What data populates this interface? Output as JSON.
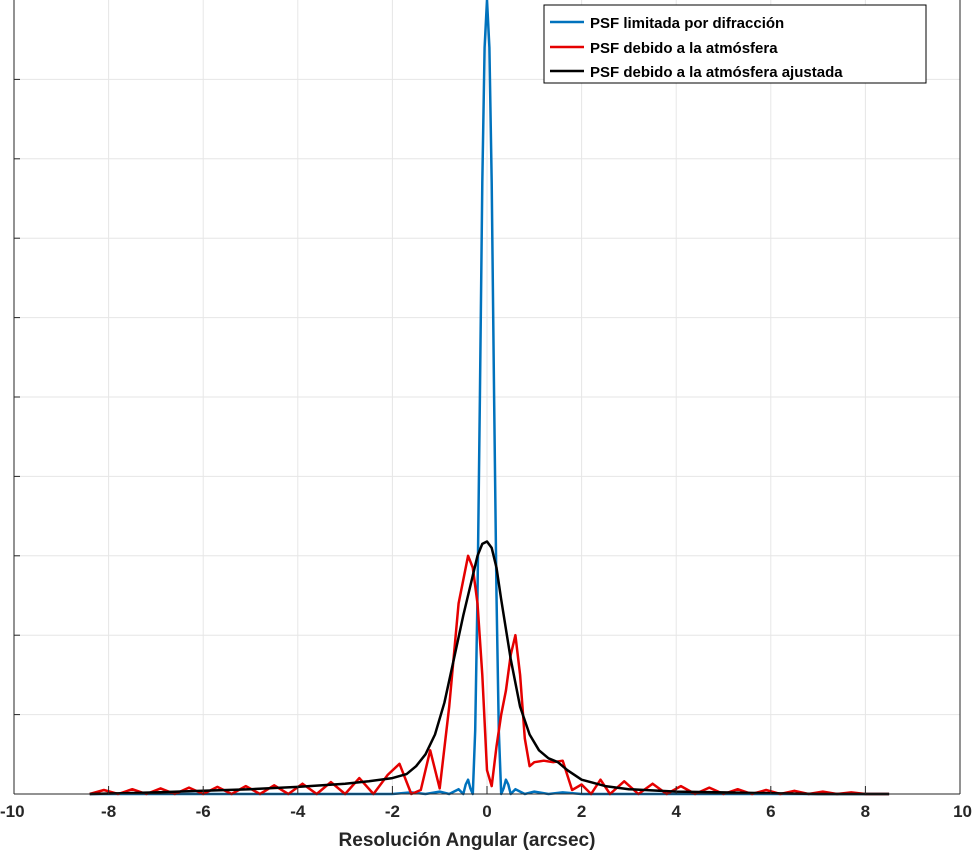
{
  "chart_data": {
    "type": "line",
    "title": "",
    "xlabel": "Resolución Angular (arcsec)",
    "ylabel": "",
    "xlim": [
      -10,
      10
    ],
    "ylim": [
      0,
      1
    ],
    "xticks": [
      -10,
      -8,
      -6,
      -4,
      -2,
      0,
      2,
      4,
      6,
      8,
      10
    ],
    "xtick_labels": [
      "-10",
      "-8",
      "-6",
      "-4",
      "-2",
      "0",
      "2",
      "4",
      "6",
      "8",
      "10"
    ],
    "y_gridlines": [
      0.1,
      0.2,
      0.3,
      0.4,
      0.5,
      0.6,
      0.7,
      0.8,
      0.9
    ],
    "grid": true,
    "legend_position": "top-right",
    "series": [
      {
        "name": "PSF limitada por difracción",
        "color": "#0072BD",
        "x": [
          -8.4,
          -2.0,
          -1.6,
          -1.3,
          -1.0,
          -0.8,
          -0.6,
          -0.5,
          -0.45,
          -0.4,
          -0.35,
          -0.3,
          -0.25,
          -0.2,
          -0.15,
          -0.1,
          -0.05,
          0.0,
          0.05,
          0.1,
          0.15,
          0.2,
          0.25,
          0.3,
          0.35,
          0.4,
          0.45,
          0.5,
          0.6,
          0.8,
          1.0,
          1.3,
          1.6,
          2.0,
          8.5
        ],
        "y": [
          0.0,
          0.0,
          0.002,
          0.0,
          0.003,
          0.0,
          0.006,
          0.0,
          0.012,
          0.018,
          0.007,
          0.0,
          0.08,
          0.25,
          0.5,
          0.77,
          0.94,
          1.0,
          0.94,
          0.77,
          0.5,
          0.25,
          0.08,
          0.0,
          0.007,
          0.018,
          0.012,
          0.0,
          0.006,
          0.0,
          0.003,
          0.0,
          0.002,
          0.0,
          0.0
        ]
      },
      {
        "name": "PSF debido a la atmósfera",
        "color": "#E50000",
        "x": [
          -8.4,
          -8.1,
          -7.8,
          -7.5,
          -7.2,
          -6.9,
          -6.6,
          -6.3,
          -6.0,
          -5.7,
          -5.4,
          -5.1,
          -4.8,
          -4.5,
          -4.2,
          -3.9,
          -3.6,
          -3.3,
          -3.0,
          -2.7,
          -2.4,
          -2.1,
          -1.85,
          -1.6,
          -1.4,
          -1.2,
          -1.0,
          -0.8,
          -0.6,
          -0.4,
          -0.3,
          -0.2,
          -0.1,
          0.0,
          0.1,
          0.2,
          0.3,
          0.4,
          0.5,
          0.6,
          0.7,
          0.8,
          0.9,
          1.0,
          1.2,
          1.4,
          1.6,
          1.8,
          2.0,
          2.2,
          2.4,
          2.6,
          2.9,
          3.2,
          3.5,
          3.8,
          4.1,
          4.4,
          4.7,
          5.0,
          5.3,
          5.6,
          5.9,
          6.2,
          6.5,
          6.8,
          7.1,
          7.4,
          7.7,
          8.0,
          8.5
        ],
        "y": [
          0.0,
          0.005,
          0.0,
          0.006,
          0.0,
          0.007,
          0.0,
          0.008,
          0.0,
          0.009,
          0.0,
          0.01,
          0.0,
          0.011,
          0.0,
          0.013,
          0.0,
          0.015,
          0.0,
          0.02,
          0.0,
          0.024,
          0.038,
          0.0,
          0.005,
          0.055,
          0.007,
          0.11,
          0.24,
          0.3,
          0.285,
          0.24,
          0.15,
          0.03,
          0.01,
          0.06,
          0.1,
          0.13,
          0.175,
          0.2,
          0.15,
          0.07,
          0.035,
          0.04,
          0.042,
          0.04,
          0.042,
          0.005,
          0.012,
          0.0,
          0.018,
          0.0,
          0.016,
          0.0,
          0.013,
          0.0,
          0.01,
          0.0,
          0.008,
          0.0,
          0.006,
          0.0,
          0.005,
          0.0,
          0.004,
          0.0,
          0.003,
          0.0,
          0.002,
          0.0,
          0.0
        ]
      },
      {
        "name": "PSF debido a la atmósfera ajustada",
        "color": "#000000",
        "x": [
          -8.4,
          -7.0,
          -6.0,
          -5.0,
          -4.0,
          -3.0,
          -2.5,
          -2.0,
          -1.7,
          -1.5,
          -1.3,
          -1.1,
          -0.9,
          -0.7,
          -0.5,
          -0.3,
          -0.2,
          -0.1,
          0.0,
          0.1,
          0.2,
          0.3,
          0.5,
          0.7,
          0.9,
          1.1,
          1.3,
          1.5,
          1.7,
          2.0,
          2.5,
          3.0,
          4.0,
          5.0,
          6.0,
          7.0,
          8.5
        ],
        "y": [
          0.0,
          0.002,
          0.004,
          0.006,
          0.009,
          0.013,
          0.016,
          0.02,
          0.025,
          0.035,
          0.05,
          0.075,
          0.115,
          0.17,
          0.225,
          0.275,
          0.3,
          0.315,
          0.318,
          0.31,
          0.285,
          0.245,
          0.17,
          0.11,
          0.075,
          0.055,
          0.045,
          0.04,
          0.03,
          0.018,
          0.01,
          0.006,
          0.003,
          0.002,
          0.001,
          0.0,
          0.0
        ]
      }
    ]
  }
}
